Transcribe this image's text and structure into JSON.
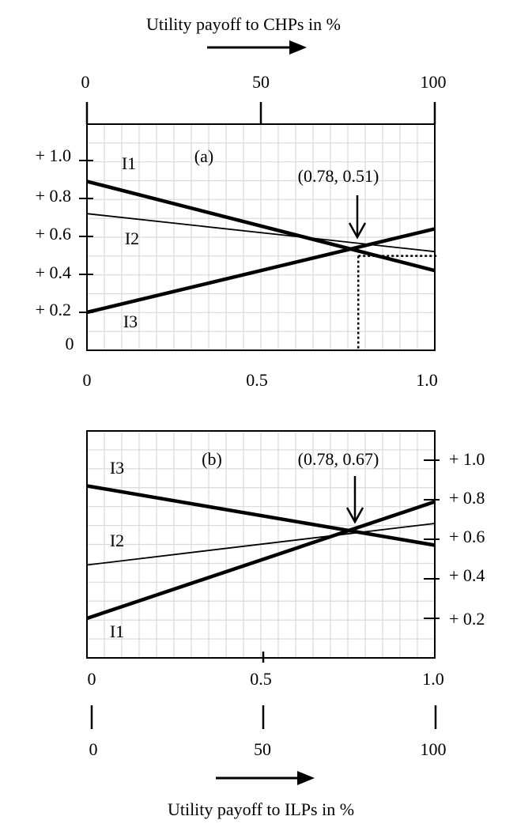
{
  "top_caption": "Utility payoff to CHPs in %",
  "bottom_caption": "Utility payoff to ILPs in %",
  "percent_ticks": [
    "0",
    "50",
    "100"
  ],
  "x_ticks": [
    "0",
    "0.5",
    "1.0"
  ],
  "colors": {
    "ink": "#000000",
    "grid": "#d9d9d9",
    "background": "#ffffff"
  },
  "chart_data": [
    {
      "type": "line",
      "panel_label": "(a)",
      "x": [
        0,
        1.0
      ],
      "xlim": [
        0,
        1.0
      ],
      "ylim": [
        0,
        1.15
      ],
      "percent_axis": {
        "position": "top",
        "range": [
          0,
          100
        ],
        "ticks": [
          0,
          50,
          100
        ]
      },
      "y_axis_position": "left",
      "y_ticks": [
        0.2,
        0.4,
        0.6,
        0.8,
        1.0
      ],
      "y_tick_labels": [
        "+ 0.2",
        "+ 0.4",
        "+ 0.6",
        "+ 0.8",
        "+ 1.0"
      ],
      "y_zero_label": "0",
      "grid": true,
      "series": [
        {
          "name": "I1",
          "values": [
            0.89,
            0.42
          ],
          "weight": "bold"
        },
        {
          "name": "I2",
          "values": [
            0.72,
            0.52
          ],
          "weight": "thin"
        },
        {
          "name": "I3",
          "values": [
            0.2,
            0.64
          ],
          "weight": "bold"
        }
      ],
      "annotation": {
        "text": "(0.78, 0.51)",
        "x": 0.78,
        "y": 0.51,
        "dotted_guides": true
      }
    },
    {
      "type": "line",
      "panel_label": "(b)",
      "x": [
        0,
        1.0
      ],
      "xlim": [
        0,
        1.0
      ],
      "ylim": [
        0,
        1.15
      ],
      "percent_axis": {
        "position": "bottom",
        "range": [
          0,
          100
        ],
        "ticks": [
          0,
          50,
          100
        ]
      },
      "y_axis_position": "right",
      "y_ticks": [
        0.2,
        0.4,
        0.6,
        0.8,
        1.0
      ],
      "y_tick_labels": [
        "+ 0.2",
        "+ 0.4",
        "+ 0.6",
        "+ 0.8",
        "+ 1.0"
      ],
      "grid": true,
      "series": [
        {
          "name": "I3",
          "values": [
            0.87,
            0.57
          ],
          "weight": "bold"
        },
        {
          "name": "I2",
          "values": [
            0.47,
            0.68
          ],
          "weight": "thin"
        },
        {
          "name": "I1",
          "values": [
            0.2,
            0.79
          ],
          "weight": "bold"
        }
      ],
      "annotation": {
        "text": "(0.78, 0.67)",
        "x": 0.78,
        "y": 0.67,
        "dotted_guides": false
      }
    }
  ]
}
